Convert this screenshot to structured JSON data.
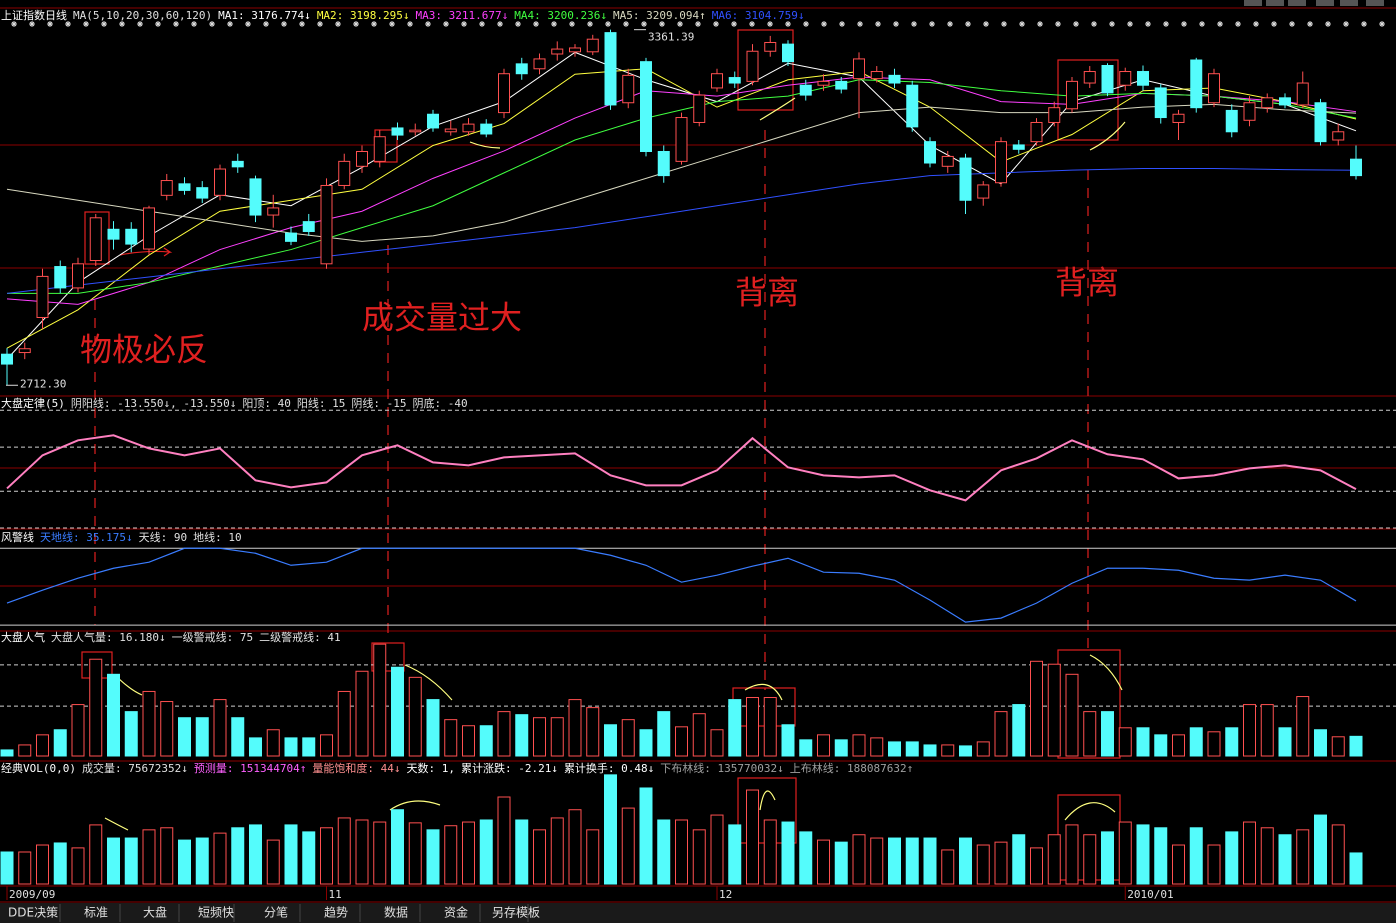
{
  "chart_data": [
    {
      "type": "candlestick",
      "title": "上证指数日线",
      "subtitle": "MA(5,10,20,30,60,120)",
      "separator": ": ",
      "up_color": "#ff5050",
      "down_color": "#54fcfc",
      "ylim": [
        2700,
        3390
      ],
      "open": [
        2769,
        2772,
        2836,
        2929,
        2890,
        2940,
        2997,
        2997,
        2961,
        3059,
        3080,
        3073,
        3059,
        3121,
        3089,
        3023,
        2990,
        3011,
        2934,
        3077,
        3112,
        3121,
        3182,
        3175,
        3207,
        3175,
        3175,
        3189,
        3210,
        3299,
        3290,
        3317,
        3321,
        3321,
        3356,
        3228,
        3303,
        3139,
        3121,
        3192,
        3255,
        3274,
        3267,
        3322,
        3335,
        3260,
        3260,
        3267,
        3272,
        3272,
        3278,
        3260,
        3157,
        3112,
        3127,
        3054,
        3082,
        3151,
        3157,
        3192,
        3217,
        3264,
        3296,
        3260,
        3285,
        3255,
        3192,
        3306,
        3228,
        3214,
        3196,
        3219,
        3237,
        3224,
        3228,
        3160,
        3125
      ],
      "high": [
        2780,
        2790,
        2925,
        2940,
        2945,
        3025,
        3012,
        3010,
        3040,
        3098,
        3092,
        3085,
        3115,
        3135,
        3095,
        3060,
        3002,
        3025,
        3090,
        3135,
        3150,
        3178,
        3192,
        3190,
        3215,
        3195,
        3200,
        3198,
        3290,
        3310,
        3318,
        3340,
        3335,
        3352,
        3361.39,
        3290,
        3310,
        3150,
        3210,
        3250,
        3290,
        3285,
        3335,
        3350,
        3342,
        3270,
        3280,
        3275,
        3320,
        3295,
        3290,
        3268,
        3165,
        3140,
        3135,
        3085,
        3165,
        3160,
        3200,
        3230,
        3275,
        3295,
        3300,
        3292,
        3296,
        3262,
        3215,
        3310,
        3290,
        3225,
        3240,
        3245,
        3245,
        3285,
        3235,
        3190,
        3150
      ],
      "low": [
        2712.3,
        2760,
        2815,
        2880,
        2882,
        2930,
        2960,
        2955,
        2950,
        3050,
        3060,
        3045,
        3050,
        3100,
        3010,
        3000,
        2968,
        2985,
        2925,
        3070,
        3100,
        3110,
        3160,
        3168,
        3175,
        3168,
        3168,
        3165,
        3200,
        3270,
        3280,
        3305,
        3312,
        3315,
        3215,
        3218,
        3130,
        3082,
        3115,
        3185,
        3248,
        3255,
        3260,
        3312,
        3295,
        3232,
        3250,
        3245,
        3200,
        3265,
        3255,
        3175,
        3110,
        3100,
        3025,
        3040,
        3075,
        3135,
        3150,
        3185,
        3210,
        3255,
        3240,
        3250,
        3250,
        3190,
        3160,
        3210,
        3220,
        3165,
        3185,
        3210,
        3218,
        3218,
        3150,
        3150,
        3088
      ],
      "close": [
        2751,
        2779,
        2911,
        2890,
        2934,
        3018,
        2979,
        2970,
        3036,
        3086,
        3068,
        3054,
        3107,
        3111,
        3023,
        3036,
        2975,
        2993,
        3077,
        3121,
        3139,
        3166,
        3169,
        3178,
        3182,
        3180,
        3189,
        3171,
        3281,
        3281,
        3308,
        3326,
        3328,
        3344,
        3224,
        3278,
        3139,
        3095,
        3201,
        3242,
        3281,
        3264,
        3322,
        3338,
        3303,
        3242,
        3267,
        3253,
        3308,
        3285,
        3264,
        3184,
        3118,
        3130,
        3050,
        3078,
        3157,
        3143,
        3192,
        3219,
        3267,
        3285,
        3246,
        3285,
        3260,
        3201,
        3207,
        3219,
        3281,
        3175,
        3228,
        3237,
        3224,
        3264,
        3157,
        3175,
        3095
      ],
      "ma": {
        "x": [
          0,
          4,
          8,
          12,
          16,
          20,
          24,
          28,
          32,
          36,
          40,
          44,
          48,
          52,
          56,
          60,
          64,
          68,
          72,
          76
        ],
        "series": [
          {
            "name": "MA1",
            "color": "#ffffff",
            "value_label": "3176.774↓",
            "values": [
              2760,
              2900,
              2985,
              3060,
              3040,
              3110,
              3185,
              3230,
              3320,
              3270,
              3230,
              3300,
              3275,
              3150,
              3080,
              3230,
              3270,
              3240,
              3225,
              3176.774
            ]
          },
          {
            "name": "MA2",
            "color": "#ffff40",
            "value_label": "3198.295↓",
            "values": [
              2780,
              2850,
              2950,
              3030,
              3050,
              3070,
              3150,
              3190,
              3280,
              3290,
              3220,
              3270,
              3285,
              3220,
              3120,
              3170,
              3250,
              3255,
              3230,
              3198.295
            ]
          },
          {
            "name": "MA3",
            "color": "#ff40ff",
            "value_label": "3211.677↓",
            "values": [
              2870,
              2860,
              2900,
              2960,
              3000,
              3030,
              3090,
              3140,
              3200,
              3250,
              3240,
              3260,
              3275,
              3270,
              3230,
              3225,
              3245,
              3240,
              3230,
              3211.677
            ]
          },
          {
            "name": "MA4",
            "color": "#40ff40",
            "value_label": "3200.236↓",
            "values": [
              2880,
              2880,
              2900,
              2930,
              2960,
              3000,
              3040,
              3100,
              3160,
              3200,
              3230,
              3240,
              3270,
              3265,
              3250,
              3240,
              3245,
              3240,
              3225,
              3200.236
            ]
          },
          {
            "name": "MA5",
            "color": "#d8d8c0",
            "value_label": "3209.094↑",
            "values": [
              3070,
              3050,
              3030,
              3010,
              2990,
              2975,
              2985,
              3010,
              3050,
              3090,
              3130,
              3170,
              3210,
              3220,
              3210,
              3210,
              3220,
              3225,
              3215,
              3209.094
            ]
          },
          {
            "name": "MA6",
            "color": "#3050ff",
            "value_label": "3104.759↓",
            "values": [
              2880,
              2895,
              2910,
              2925,
              2940,
              2955,
              2970,
              2985,
              3000,
              3020,
              3040,
              3060,
              3080,
              3095,
              3100,
              3105,
              3108,
              3108,
              3106,
              3104.759
            ]
          }
        ]
      },
      "markers": [
        {
          "value": 2712.3,
          "label": "2712.30"
        },
        {
          "value": 3361.39,
          "label": "3361.39"
        }
      ],
      "xticks": [
        {
          "value": 0,
          "label": "2009/09"
        },
        {
          "value": 18,
          "label": "11"
        },
        {
          "value": 40,
          "label": "12"
        },
        {
          "value": 63,
          "label": "2010/01"
        }
      ]
    },
    {
      "type": "line",
      "title": "大盘定律(5)",
      "separator": ": ",
      "ylim": [
        -40,
        47
      ],
      "level_style": "dashed",
      "x": [
        0,
        2,
        4,
        6,
        8,
        10,
        12,
        14,
        16,
        18,
        20,
        22,
        24,
        26,
        28,
        30,
        32,
        34,
        36,
        38,
        40,
        42,
        44,
        46,
        48,
        50,
        52,
        54,
        56,
        58,
        60,
        62,
        64,
        66,
        68,
        70,
        72,
        74,
        76
      ],
      "series": [
        {
          "name": "阴阳线",
          "color": "#ff80c0",
          "value_label": "-13.550↓, -13.550↓",
          "values": [
            -13.1,
            9.4,
            19.6,
            23.0,
            14.1,
            9.4,
            14.1,
            -7.6,
            -12.4,
            -9.0,
            9.4,
            16.2,
            4.6,
            2.6,
            8.0,
            9.4,
            10.7,
            -4.2,
            -11.0,
            -11.0,
            -0.8,
            21.0,
            1.2,
            -4.2,
            -5.6,
            -4.2,
            -14.4,
            -21.2,
            -0.8,
            7.3,
            19.6,
            10.1,
            6.7,
            -6.3,
            -4.2,
            0.5,
            2.6,
            -0.8,
            -13.55
          ]
        }
      ],
      "levels": [
        {
          "value": 40,
          "label": "阳顶: 40"
        },
        {
          "value": 15,
          "label": "阳线: 15"
        },
        {
          "value": -15,
          "label": "阴线: -15"
        },
        {
          "value": -40,
          "label": "阴底: -40"
        }
      ]
    },
    {
      "type": "line",
      "title": "风警线",
      "separator": ": ",
      "ylim": [
        7,
        109
      ],
      "level_style": "solid",
      "x": [
        0,
        2,
        4,
        6,
        8,
        10,
        12,
        14,
        16,
        18,
        20,
        22,
        24,
        26,
        28,
        30,
        32,
        34,
        36,
        38,
        40,
        42,
        44,
        46,
        48,
        50,
        52,
        54,
        56,
        58,
        60,
        62,
        64,
        66,
        68,
        70,
        72,
        74,
        76
      ],
      "levels": [
        {
          "value": 90,
          "label": "天线: 90"
        },
        {
          "value": 10,
          "label": "地线: 10"
        }
      ],
      "series": [
        {
          "name": "天地线",
          "color": "#3a7cff",
          "value_label": "35.175↓",
          "values": [
            32.9,
            46.4,
            58.8,
            69.2,
            75.5,
            90,
            90,
            84.8,
            72.3,
            75.5,
            90,
            90,
            90,
            90,
            90,
            90,
            90,
            82.7,
            72.3,
            54.7,
            62,
            71.3,
            79.6,
            65.1,
            64,
            56.8,
            36,
            13.1,
            17.3,
            32.9,
            53.6,
            69.2,
            69.2,
            67.1,
            58.8,
            56.8,
            62,
            56.8,
            35.175
          ]
        }
      ]
    },
    {
      "type": "bar",
      "title": "大盘人气",
      "separator": ": ",
      "ylim": [
        0,
        102
      ],
      "level_style": "dashed",
      "series": [
        {
          "name": "大盘人气量",
          "color": "#ffffff",
          "value_label": "16.180↓",
          "values": [
            5.0,
            9.1,
            17.4,
            21.6,
            42.3,
            79.6,
            67.2,
            36.5,
            53.1,
            44.8,
            31.5,
            31.5,
            46.4,
            31.5,
            14.9,
            21.6,
            14.9,
            14.9,
            17.4,
            53.1,
            69.7,
            92,
            73,
            64.7,
            46.4,
            29.9,
            24.9,
            24.9,
            36.5,
            34,
            31.5,
            31.5,
            46.4,
            39.8,
            25.7,
            29.9,
            21.6,
            36.5,
            24,
            34.8,
            21.6,
            46.4,
            48.1,
            48.1,
            25.7,
            13.3,
            17.4,
            13.3,
            17.4,
            14.9,
            11.6,
            11.6,
            9.1,
            9.1,
            8.3,
            11.6,
            36.5,
            42.3,
            77.9,
            75.5,
            67.2,
            36.5,
            36.5,
            23.2,
            23.2,
            17.4,
            17.4,
            23.2,
            19.9,
            23.2,
            42.3,
            42.3,
            23.2,
            48.9,
            21.6,
            15.8,
            16.18
          ]
        }
      ],
      "levels": [
        {
          "value": 75,
          "label": "一级警戒线: 75"
        },
        {
          "value": 41,
          "label": "二级警戒线: 41"
        }
      ]
    },
    {
      "type": "bar",
      "title": "经典VOL(0,0)",
      "separator": ": ",
      "ylim": [
        0,
        290000000
      ],
      "series": [
        {
          "name": "成交量",
          "color": "#ffffff",
          "value_label": "75672352↓",
          "values": [
            78000000,
            78000000,
            95000000,
            100000000,
            88000000,
            144000000,
            112000000,
            112000000,
            132000000,
            137000000,
            107000000,
            112000000,
            124000000,
            137000000,
            144000000,
            107000000,
            144000000,
            127000000,
            137000000,
            161000000,
            156000000,
            151000000,
            181000000,
            149000000,
            132000000,
            142000000,
            151000000,
            156000000,
            212000000,
            156000000,
            132000000,
            161000000,
            181000000,
            132000000,
            266000000,
            185000000,
            234000000,
            156000000,
            156000000,
            132000000,
            168000000,
            144000000,
            229000000,
            156000000,
            151000000,
            127000000,
            107000000,
            102000000,
            120000000,
            112000000,
            112000000,
            112000000,
            112000000,
            83000000,
            112000000,
            95000000,
            102000000,
            120000000,
            88000000,
            120000000,
            144000000,
            120000000,
            127000000,
            151000000,
            144000000,
            137000000,
            95000000,
            137000000,
            95000000,
            127000000,
            151000000,
            137000000,
            120000000,
            132000000,
            168000000,
            144000000,
            75672352
          ]
        }
      ],
      "indicators": [
        {
          "text": "预测量: 151344704↑",
          "color": "#ff60ff"
        },
        {
          "text": "量能饱和度: 44↓",
          "color": "#ff9090"
        },
        {
          "text": "天数: 1,",
          "color": "#ffffff"
        },
        {
          "text": "累计涨跌: -2.21↓",
          "color": "#ffffff"
        },
        {
          "text": "累计换手: 0.48↓",
          "color": "#ffffff"
        },
        {
          "text": "下布林线: 135770032↓",
          "color": "#a0a0a0"
        },
        {
          "text": "上布林线: 188087632↑",
          "color": "#a0a0a0"
        }
      ]
    }
  ],
  "annotations": [
    "物极必反",
    "成交量过大",
    "背离",
    "背离"
  ],
  "toolbar": [
    "DDE决策",
    "标准",
    "大盘",
    "短频快",
    "分笔",
    "趋势",
    "数据",
    "资金",
    "另存模板"
  ]
}
